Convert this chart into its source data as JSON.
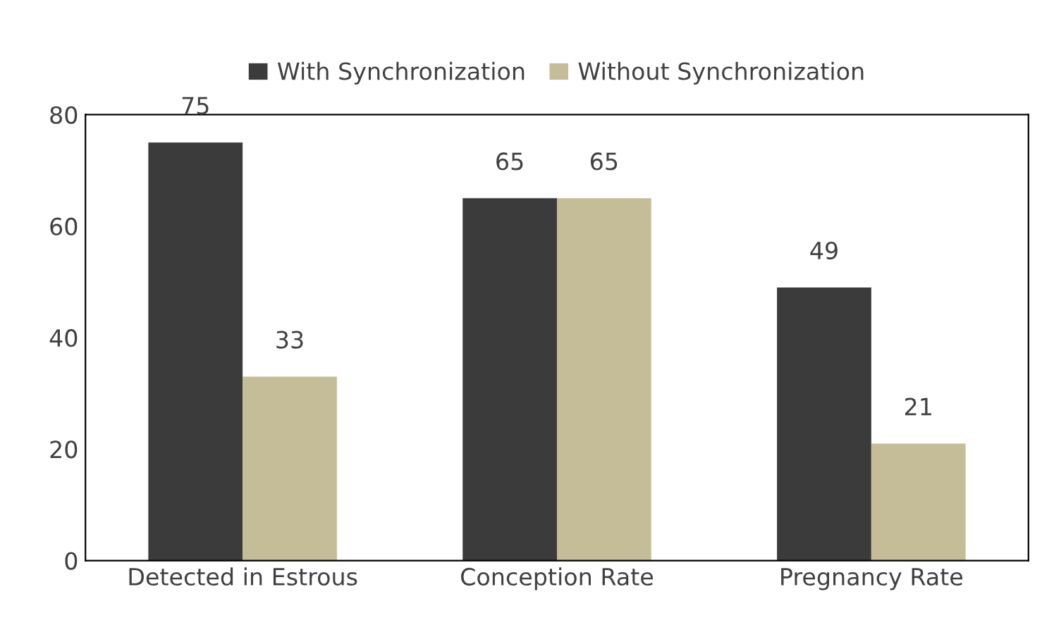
{
  "chart_data": {
    "type": "bar",
    "categories": [
      "Detected in Estrous",
      "Conception Rate",
      "Pregnancy Rate"
    ],
    "series": [
      {
        "name": "With Synchronization",
        "color": "#3b3b3b",
        "values": [
          75,
          65,
          49
        ]
      },
      {
        "name": "Without Synchronization",
        "color": "#c4bd97",
        "values": [
          33,
          65,
          21
        ]
      }
    ],
    "ylim": [
      0,
      80
    ],
    "yticks": [
      0,
      20,
      40,
      60,
      80
    ],
    "grid": false,
    "legend": "top",
    "data_labels": true
  }
}
